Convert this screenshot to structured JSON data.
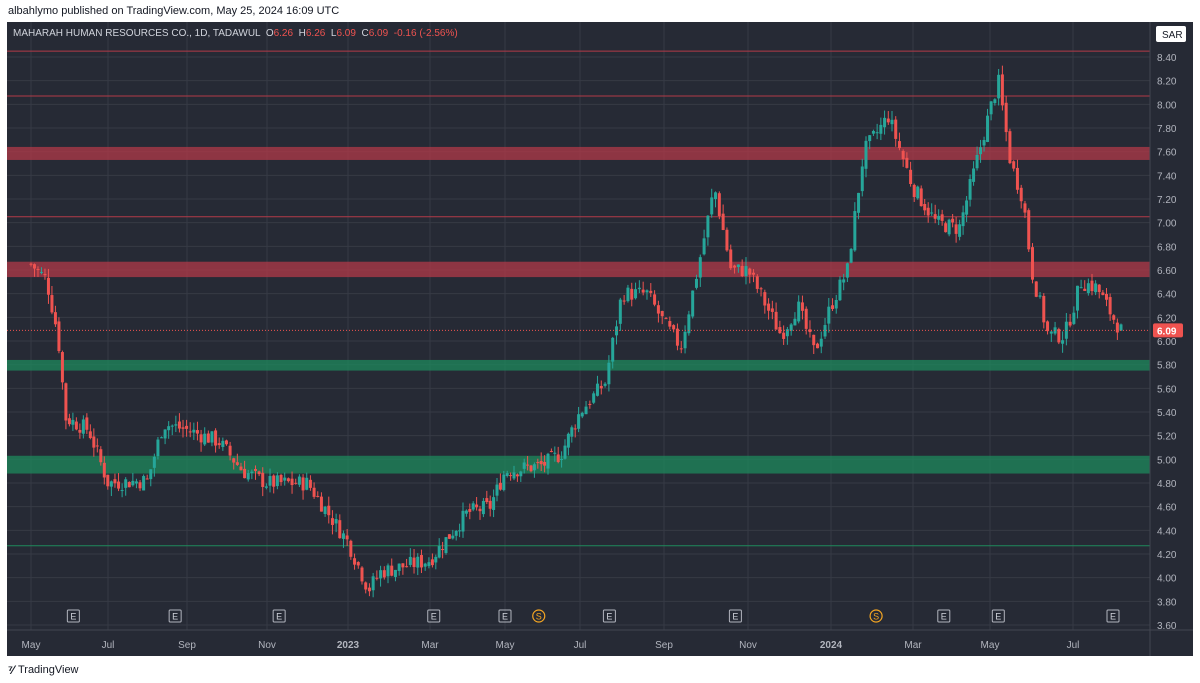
{
  "header": {
    "published": "albahlymo published on TradingView.com, May 25, 2024 16:09 UTC"
  },
  "legend": {
    "symbol": "MAHARAH HUMAN RESOURCES CO., 1D, TADAWUL",
    "o_label": "O",
    "o_value": "6.26",
    "h_label": "H",
    "h_value": "6.26",
    "l_label": "L",
    "l_value": "6.09",
    "c_label": "C",
    "c_value": "6.09",
    "change": "-0.16 (-2.56%)"
  },
  "currency": "SAR",
  "last_price": "6.09",
  "footer": {
    "brand": "TradingView"
  },
  "colors": {
    "background": "#262a35",
    "up": "#26a69a",
    "down": "#ef5350",
    "grid": "#363a45",
    "text": "#b2b5be",
    "red_zone": "#b23a48",
    "green_zone": "#1e8a5c"
  },
  "chart_data": {
    "type": "candlestick",
    "y_axis": {
      "min": 3.5,
      "max": 8.6,
      "position": "right",
      "ticks": [
        "3.60",
        "3.80",
        "4.00",
        "4.20",
        "4.40",
        "4.60",
        "4.80",
        "5.00",
        "5.20",
        "5.40",
        "5.60",
        "5.80",
        "6.00",
        "6.20",
        "6.40",
        "6.60",
        "6.80",
        "7.00",
        "7.20",
        "7.40",
        "7.60",
        "7.80",
        "8.00",
        "8.20",
        "8.40"
      ]
    },
    "x_axis": {
      "ticks": [
        "May",
        "Jul",
        "Sep",
        "Nov",
        "2023",
        "Mar",
        "May",
        "Jul",
        "Sep",
        "Nov",
        "2024",
        "Mar",
        "May",
        "Jul"
      ]
    },
    "grid": true,
    "horizontal_lines": [
      8.45,
      8.07,
      7.05,
      4.27
    ],
    "zones": [
      {
        "color": "red",
        "from": 7.53,
        "to": 7.64
      },
      {
        "color": "red",
        "from": 6.54,
        "to": 6.67
      },
      {
        "color": "green",
        "from": 5.75,
        "to": 5.84
      },
      {
        "color": "green",
        "from": 4.88,
        "to": 5.03
      }
    ],
    "close_path": [
      [
        0,
        6.65
      ],
      [
        0.2,
        6.52
      ],
      [
        0.35,
        6.05
      ],
      [
        0.45,
        5.35
      ],
      [
        0.75,
        5.25
      ],
      [
        1.0,
        4.8
      ],
      [
        1.5,
        4.82
      ],
      [
        1.7,
        5.3
      ],
      [
        2.0,
        5.25
      ],
      [
        2.4,
        5.15
      ],
      [
        2.7,
        4.9
      ],
      [
        3.0,
        4.8
      ],
      [
        3.5,
        4.8
      ],
      [
        4.0,
        4.3
      ],
      [
        4.25,
        3.9
      ],
      [
        4.4,
        4.05
      ],
      [
        5.0,
        4.15
      ],
      [
        5.5,
        4.55
      ],
      [
        5.8,
        4.6
      ],
      [
        6.0,
        4.9
      ],
      [
        6.5,
        4.95
      ],
      [
        6.75,
        5.05
      ],
      [
        7.0,
        5.4
      ],
      [
        7.3,
        5.65
      ],
      [
        7.5,
        6.4
      ],
      [
        7.8,
        6.4
      ],
      [
        8.0,
        6.15
      ],
      [
        8.2,
        5.95
      ],
      [
        8.4,
        6.6
      ],
      [
        8.6,
        7.3
      ],
      [
        8.8,
        6.6
      ],
      [
        9.0,
        6.6
      ],
      [
        9.4,
        6.05
      ],
      [
        9.6,
        6.3
      ],
      [
        9.8,
        5.9
      ],
      [
        10.0,
        6.3
      ],
      [
        10.2,
        6.6
      ],
      [
        10.4,
        7.6
      ],
      [
        10.6,
        7.8
      ],
      [
        10.7,
        7.9
      ],
      [
        11.0,
        7.3
      ],
      [
        11.3,
        7.0
      ],
      [
        11.6,
        6.95
      ],
      [
        11.9,
        7.7
      ],
      [
        12.1,
        8.2
      ],
      [
        12.25,
        7.5
      ],
      [
        12.4,
        7.2
      ],
      [
        12.5,
        6.6
      ],
      [
        12.7,
        6.05
      ],
      [
        12.9,
        6.05
      ],
      [
        13.1,
        6.5
      ],
      [
        13.3,
        6.45
      ],
      [
        13.5,
        6.2
      ],
      [
        13.6,
        6.09
      ]
    ],
    "events": [
      {
        "label": "E",
        "x": 0.55
      },
      {
        "label": "E",
        "x": 1.85
      },
      {
        "label": "E",
        "x": 3.15
      },
      {
        "label": "E",
        "x": 5.05
      },
      {
        "label": "S",
        "x": 6.45
      },
      {
        "label": "E",
        "x": 6.0
      },
      {
        "label": "E",
        "x": 7.35
      },
      {
        "label": "E",
        "x": 8.85
      },
      {
        "label": "S",
        "x": 10.55
      },
      {
        "label": "E",
        "x": 11.4
      },
      {
        "label": "E",
        "x": 12.1
      },
      {
        "label": "E",
        "x": 13.5
      }
    ]
  }
}
